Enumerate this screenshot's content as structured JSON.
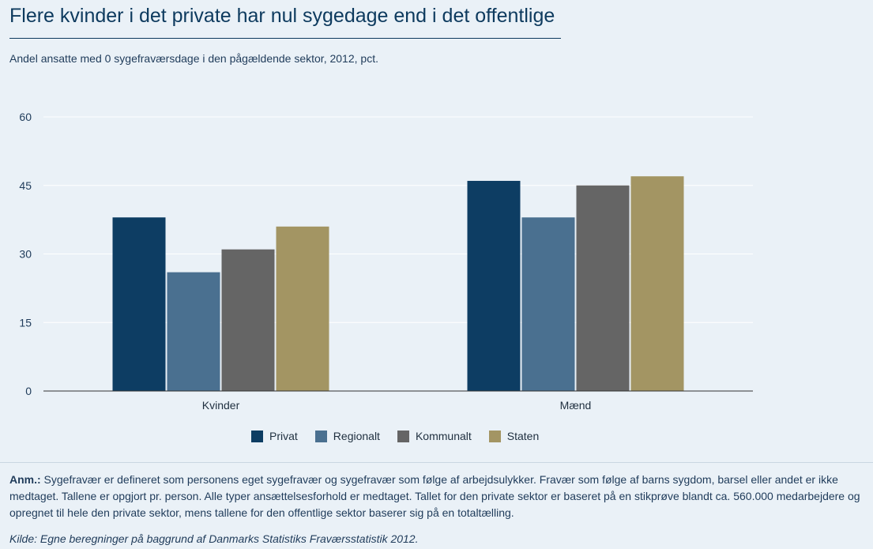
{
  "header": {
    "title": "Flere kvinder i det private har nul sygedage end i det offentlige",
    "subtitle": "Andel ansatte med 0 sygefraværsdage i den pågældende sektor, 2012, pct."
  },
  "chart_data": {
    "type": "bar",
    "categories": [
      "Kvinder",
      "Mænd"
    ],
    "series": [
      {
        "name": "Privat",
        "values": [
          38,
          46
        ],
        "color": "#0d3d63"
      },
      {
        "name": "Regionalt",
        "values": [
          26,
          38
        ],
        "color": "#4a7090"
      },
      {
        "name": "Kommunalt",
        "values": [
          31,
          45
        ],
        "color": "#656565"
      },
      {
        "name": "Staten",
        "values": [
          36,
          47
        ],
        "color": "#a39563"
      }
    ],
    "yticks": [
      0,
      15,
      30,
      45,
      60
    ],
    "ylim": [
      0,
      60
    ],
    "grid": true,
    "legend": "bottom"
  },
  "footer": {
    "note_label": "Anm.:",
    "note_text": " Sygefravær er defineret som personens eget sygefravær og sygefravær som følge af arbejdsulykker. Fravær som følge af barns sygdom, barsel eller andet er ikke medtaget. Tallene er opgjort pr. person. Alle typer ansættelsesforhold er medtaget. Tallet for den private sektor er baseret på en stikprøve blandt ca. 560.000 medarbejdere og opregnet til hele den private sektor, mens tallene for den offentlige sektor baserer sig på en totaltælling.",
    "source": "Kilde: Egne beregninger på baggrund af Danmarks Statistiks Fraværsstatistik 2012."
  }
}
